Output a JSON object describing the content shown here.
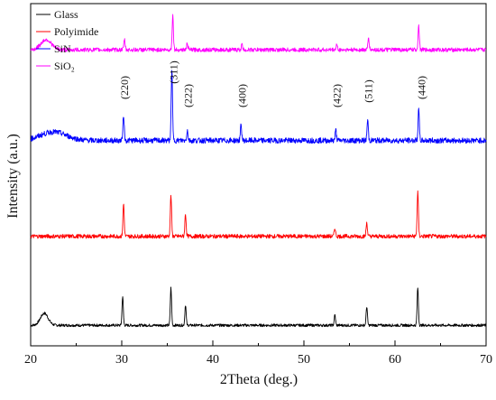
{
  "chart_data": {
    "type": "line",
    "xlabel": "2Theta (deg.)",
    "ylabel": "Intensity (a.u.)",
    "xlim": [
      20,
      70
    ],
    "x_ticks": [
      20,
      30,
      40,
      50,
      60,
      70
    ],
    "y_ticks_shown": false,
    "grid": false,
    "legend_position": "top-left",
    "series": [
      {
        "name": "Glass",
        "color": "#000000",
        "baseline": 0.06,
        "noise": 0.004,
        "hump": {
          "center": 21.5,
          "width": 0.6,
          "height": 0.035
        },
        "peaks": [
          {
            "x": 30.1,
            "height": 0.085
          },
          {
            "x": 35.4,
            "height": 0.11
          },
          {
            "x": 37.0,
            "height": 0.06
          },
          {
            "x": 53.4,
            "height": 0.03
          },
          {
            "x": 56.9,
            "height": 0.055
          },
          {
            "x": 62.5,
            "height": 0.11
          }
        ]
      },
      {
        "name": "Polyimide",
        "color": "#ff0000",
        "baseline": 0.32,
        "noise": 0.006,
        "hump": {
          "center": 21.0,
          "width": 0.5,
          "height": 0.0
        },
        "peaks": [
          {
            "x": 30.2,
            "height": 0.095
          },
          {
            "x": 35.4,
            "height": 0.12
          },
          {
            "x": 37.0,
            "height": 0.065
          },
          {
            "x": 53.4,
            "height": 0.025
          },
          {
            "x": 56.9,
            "height": 0.04
          },
          {
            "x": 62.5,
            "height": 0.13
          }
        ]
      },
      {
        "name": "SiN",
        "color": "#0000ff",
        "baseline": 0.6,
        "noise": 0.008,
        "hump": {
          "center": 22.5,
          "width": 2.0,
          "height": 0.025
        },
        "peaks": [
          {
            "x": 30.2,
            "height": 0.075
          },
          {
            "x": 35.5,
            "height": 0.21
          },
          {
            "x": 37.2,
            "height": 0.03
          },
          {
            "x": 43.1,
            "height": 0.045
          },
          {
            "x": 53.5,
            "height": 0.03
          },
          {
            "x": 57.0,
            "height": 0.06
          },
          {
            "x": 62.6,
            "height": 0.09
          }
        ]
      },
      {
        "name": "SiO₂",
        "color": "#ff00ff",
        "baseline": 0.865,
        "noise": 0.006,
        "hump": {
          "center": 21.7,
          "width": 0.8,
          "height": 0.03
        },
        "peaks": [
          {
            "x": 30.3,
            "height": 0.03
          },
          {
            "x": 35.6,
            "height": 0.1
          },
          {
            "x": 37.2,
            "height": 0.02
          },
          {
            "x": 43.2,
            "height": 0.015
          },
          {
            "x": 53.6,
            "height": 0.015
          },
          {
            "x": 57.1,
            "height": 0.035
          },
          {
            "x": 62.6,
            "height": 0.07
          }
        ]
      }
    ],
    "annotations": [
      {
        "text": "(220)",
        "x": 30.3
      },
      {
        "text": "(311)",
        "x": 35.7
      },
      {
        "text": "(222)",
        "x": 37.3
      },
      {
        "text": "(400)",
        "x": 43.2
      },
      {
        "text": "(422)",
        "x": 53.6
      },
      {
        "text": "(511)",
        "x": 57.1
      },
      {
        "text": "(440)",
        "x": 62.9
      }
    ]
  }
}
